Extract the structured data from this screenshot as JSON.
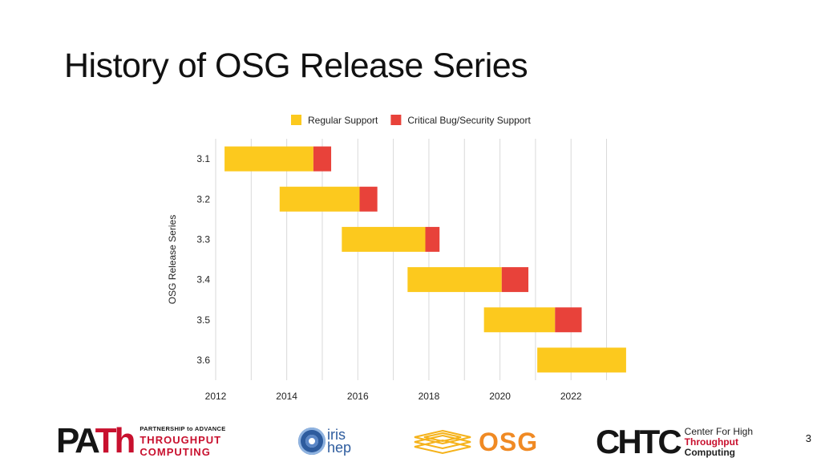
{
  "slide": {
    "title": "History of OSG Release Series",
    "number": "3"
  },
  "chart_data": {
    "type": "bar",
    "orientation": "horizontal-stacked-gantt",
    "title": "",
    "xlabel": "",
    "ylabel": "OSG Release Series",
    "categories": [
      "3.1",
      "3.2",
      "3.3",
      "3.4",
      "3.5",
      "3.6"
    ],
    "xlim": [
      2012,
      2023.8
    ],
    "xticks": [
      2012,
      2014,
      2016,
      2018,
      2020,
      2022
    ],
    "grid": "vertical",
    "legend_position": "top",
    "series": [
      {
        "name": "Regular Support",
        "color": "#fcc91e",
        "ranges": [
          [
            2012.25,
            2014.75
          ],
          [
            2013.8,
            2016.05
          ],
          [
            2015.55,
            2017.9
          ],
          [
            2017.4,
            2020.05
          ],
          [
            2019.55,
            2021.55
          ],
          [
            2021.05,
            2023.55
          ]
        ]
      },
      {
        "name": "Critical Bug/Security Support",
        "color": "#e8423a",
        "ranges": [
          [
            2014.75,
            2015.25
          ],
          [
            2016.05,
            2016.55
          ],
          [
            2017.9,
            2018.3
          ],
          [
            2020.05,
            2020.8
          ],
          [
            2021.55,
            2022.3
          ],
          null
        ]
      }
    ]
  },
  "logos": {
    "path": {
      "mark_a": "PA",
      "mark_b": "Th",
      "small": "PARTNERSHIP to ADVANCE",
      "line1": "THROUGHPUT",
      "line2": "COMPUTING"
    },
    "iris": {
      "line1": "iris",
      "line2": "hep"
    },
    "osg": {
      "text": "OSG"
    },
    "chtc": {
      "mark": "CHTC",
      "line1": "Center For High",
      "line2": "Throughput",
      "line3": "Computing"
    }
  }
}
